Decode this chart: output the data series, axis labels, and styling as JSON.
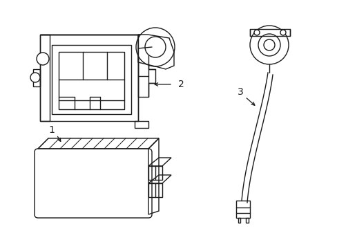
{
  "background_color": "#ffffff",
  "line_color": "#1a1a1a",
  "line_width": 1.0,
  "fig_width": 4.89,
  "fig_height": 3.6,
  "dpi": 100
}
